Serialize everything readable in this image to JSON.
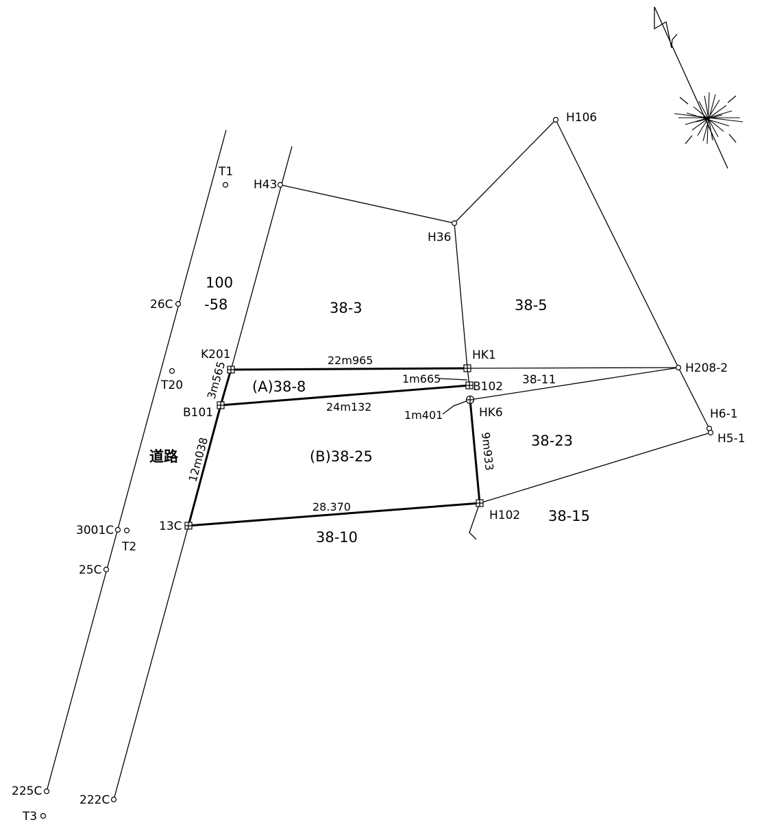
{
  "north_arrow": {
    "icon": "north-arrow-icon"
  },
  "points": {
    "T1": "T1",
    "H43": "H43",
    "H36": "H36",
    "H106": "H106",
    "26C": "26C",
    "K201": "K201",
    "HK1": "HK1",
    "H208_2": "H208-2",
    "T20": "T20",
    "B102": "B102",
    "B101": "B101",
    "HK6": "HK6",
    "H6_1": "H6-1",
    "H5_1": "H5-1",
    "3001C": "3001C",
    "T2": "T2",
    "13C": "13C",
    "H102": "H102",
    "25C": "25C",
    "225C": "225C",
    "222C": "222C",
    "T3": "T3"
  },
  "parcels": {
    "p100_line1": "100",
    "p100_line2": "-58",
    "p38_3": "38-3",
    "p38_5": "38-5",
    "p38_8": "(A)38-8",
    "p38_11": "38-11",
    "p38_23": "38-23",
    "p38_25": "(B)38-25",
    "p38_15": "38-15",
    "p38_10": "38-10",
    "road": "道路"
  },
  "dimensions": {
    "k201_hk1": "22m965",
    "k201_b101": "3m565",
    "hk1_b102": "1m665",
    "b101_b102": "24m132",
    "b102_hk6": "1m401",
    "b101_13c": "12m038",
    "hk6_h102": "9m933",
    "c13_h102": "28.370"
  }
}
